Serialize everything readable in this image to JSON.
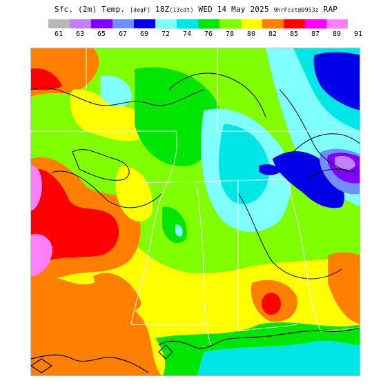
{
  "header": {
    "product": "Sfc. (2m) Temp.",
    "units": "[degF]",
    "valid": "18Z",
    "issued": "(13cdt)",
    "date": "WED 14 May 2025",
    "forecast": "9hrFcst@0953z",
    "model": "RAP"
  },
  "legend": {
    "colors": [
      "#b7b7b7",
      "#c080ff",
      "#8000ff",
      "#6f8fff",
      "#0000e6",
      "#80ffff",
      "#00e6e6",
      "#00e600",
      "#80ff00",
      "#ffff00",
      "#ff8000",
      "#ff0000",
      "#ff00ff",
      "#ff80ff"
    ],
    "ticks": [
      "61",
      "63",
      "65",
      "67",
      "69",
      "72",
      "74",
      "76",
      "78",
      "80",
      "82",
      "85",
      "87",
      "89",
      "91"
    ]
  }
}
